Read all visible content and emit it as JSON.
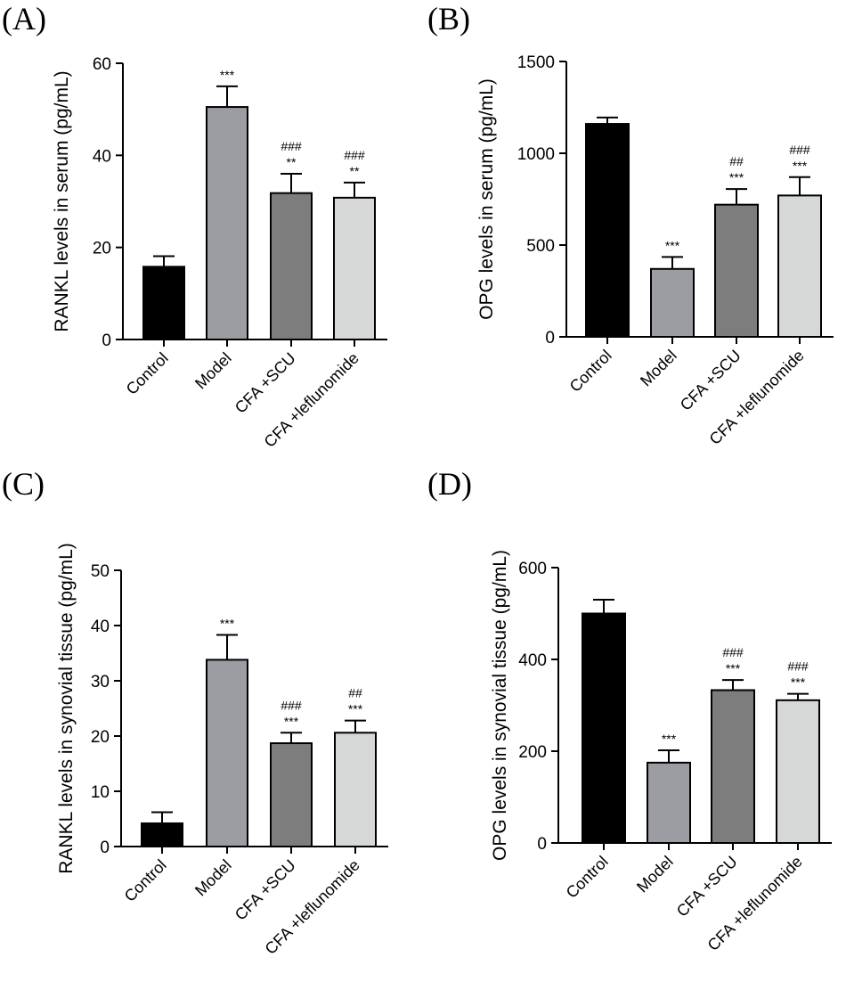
{
  "chart_data": [
    {
      "type": "bar",
      "panel_label": "(A)",
      "categories": [
        "Control",
        "Model",
        "CFA +SCU",
        "CFA +leflunomide"
      ],
      "values": [
        15.8,
        50.5,
        31.8,
        30.8
      ],
      "errors": [
        2.3,
        4.5,
        4.2,
        3.3
      ],
      "annotations": [
        [],
        [
          "***"
        ],
        [
          "###",
          "**"
        ],
        [
          "###",
          "**"
        ]
      ],
      "bar_colors": [
        "#000000",
        "#9c9da2",
        "#7d7d7d",
        "#d6d8d7"
      ],
      "ylabel": "RANKL levels in serum (pg/mL)",
      "xlabel": "",
      "ylim": [
        0,
        60
      ],
      "yticks": [
        0,
        20,
        40,
        60
      ]
    },
    {
      "type": "bar",
      "panel_label": "(B)",
      "categories": [
        "Control",
        "Model",
        "CFA +SCU",
        "CFA +leflunomide"
      ],
      "values": [
        1160,
        370,
        720,
        770
      ],
      "errors": [
        35,
        65,
        85,
        100
      ],
      "annotations": [
        [],
        [
          "***"
        ],
        [
          "##",
          "***"
        ],
        [
          "###",
          "***"
        ]
      ],
      "bar_colors": [
        "#000000",
        "#9c9da2",
        "#7d7d7d",
        "#d6d8d7"
      ],
      "ylabel": "OPG levels in serum (pg/mL)",
      "xlabel": "",
      "ylim": [
        0,
        1500
      ],
      "yticks": [
        0,
        500,
        1000,
        1500
      ]
    },
    {
      "type": "bar",
      "panel_label": "(C)",
      "categories": [
        "Control",
        "Model",
        "CFA +SCU",
        "CFA +leflunomide"
      ],
      "values": [
        4.2,
        33.8,
        18.7,
        20.6
      ],
      "errors": [
        2.0,
        4.5,
        1.9,
        2.2
      ],
      "annotations": [
        [],
        [
          "***"
        ],
        [
          "###",
          "***"
        ],
        [
          "##",
          "***"
        ]
      ],
      "bar_colors": [
        "#000000",
        "#9c9da2",
        "#7d7d7d",
        "#d6d8d7"
      ],
      "ylabel": "RANKL levels in synovial tissue (pg/mL)",
      "xlabel": "",
      "ylim": [
        0,
        50
      ],
      "yticks": [
        0,
        10,
        20,
        30,
        40,
        50
      ]
    },
    {
      "type": "bar",
      "panel_label": "(D)",
      "categories": [
        "Control",
        "Model",
        "CFA +SCU",
        "CFA +leflunomide"
      ],
      "values": [
        500,
        175,
        333,
        311
      ],
      "errors": [
        30,
        27,
        22,
        14
      ],
      "annotations": [
        [],
        [
          "***"
        ],
        [
          "###",
          "***"
        ],
        [
          "###",
          "***"
        ]
      ],
      "bar_colors": [
        "#000000",
        "#9c9da2",
        "#7d7d7d",
        "#d6d8d7"
      ],
      "ylabel": "OPG levels in synovial tissue (pg/mL)",
      "xlabel": "",
      "ylim": [
        0,
        600
      ],
      "yticks": [
        0,
        200,
        400,
        600
      ]
    }
  ]
}
